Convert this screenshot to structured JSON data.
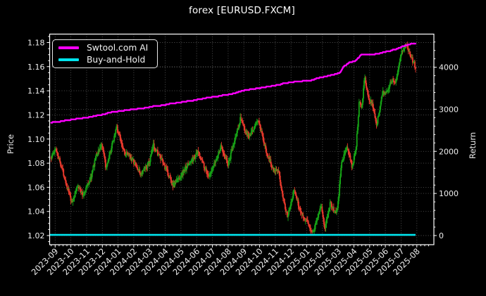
{
  "chart_data": {
    "type": "candlestick+line",
    "title": "forex [EURUSD.FXCM]",
    "grid": "dotted",
    "legend_position": "upper-left",
    "left_axis": {
      "label": "Price",
      "ticks": [
        1.02,
        1.04,
        1.06,
        1.08,
        1.1,
        1.12,
        1.14,
        1.16,
        1.18
      ],
      "lim": [
        1.0125,
        1.1875
      ],
      "minor_step": 0.005
    },
    "right_axis": {
      "label": "Return",
      "ticks": [
        0,
        1000,
        2000,
        3000,
        4000
      ],
      "lim": [
        -225,
        4790
      ],
      "minor_step": 200
    },
    "x_axis": {
      "tick_labels": [
        "2023-09",
        "2023-10",
        "2023-11",
        "2023-12",
        "2024-01",
        "2024-02",
        "2024-03",
        "2024-04",
        "2024-05",
        "2024-06",
        "2024-07",
        "2024-08",
        "2024-09",
        "2024-10",
        "2024-11",
        "2024-12",
        "2025-01",
        "2025-02",
        "2025-03",
        "2025-04",
        "2025-05",
        "2025-06",
        "2025-07",
        "2025-08"
      ],
      "label_rotation_deg": 45
    },
    "legend": [
      {
        "label": "Swtool.com AI",
        "color": "#ff00ff",
        "series": "ai_return"
      },
      {
        "label": "Buy-and-Hold",
        "color": "#00e5ee",
        "series": "buy_and_hold_return"
      }
    ],
    "series": {
      "price_candles_anchors": [
        [
          -0.25,
          1.085
        ],
        [
          0.05,
          1.092
        ],
        [
          0.5,
          1.073
        ],
        [
          1.05,
          1.0465
        ],
        [
          1.45,
          1.062
        ],
        [
          1.75,
          1.053
        ],
        [
          2.3,
          1.069
        ],
        [
          2.55,
          1.084
        ],
        [
          2.95,
          1.096
        ],
        [
          3.25,
          1.075
        ],
        [
          3.9,
          1.11
        ],
        [
          4.45,
          1.088
        ],
        [
          4.8,
          1.085
        ],
        [
          5.45,
          1.0705
        ],
        [
          6.0,
          1.081
        ],
        [
          6.25,
          1.095
        ],
        [
          6.9,
          1.079
        ],
        [
          7.5,
          1.0615
        ],
        [
          8.0,
          1.07
        ],
        [
          8.35,
          1.077
        ],
        [
          8.8,
          1.084
        ],
        [
          9.1,
          1.089
        ],
        [
          9.8,
          1.068
        ],
        [
          10.1,
          1.078
        ],
        [
          10.55,
          1.094
        ],
        [
          11.0,
          1.0785
        ],
        [
          11.8,
          1.118
        ],
        [
          12.1,
          1.105
        ],
        [
          12.35,
          1.102
        ],
        [
          12.9,
          1.116
        ],
        [
          13.3,
          1.095
        ],
        [
          13.75,
          1.078
        ],
        [
          14.2,
          1.072
        ],
        [
          14.75,
          1.036
        ],
        [
          15.2,
          1.058
        ],
        [
          15.6,
          1.04
        ],
        [
          16.05,
          1.03
        ],
        [
          16.4,
          1.022
        ],
        [
          16.9,
          1.046
        ],
        [
          17.15,
          1.025
        ],
        [
          17.5,
          1.048
        ],
        [
          17.75,
          1.039
        ],
        [
          17.95,
          1.041
        ],
        [
          18.2,
          1.079
        ],
        [
          18.55,
          1.094
        ],
        [
          18.9,
          1.076
        ],
        [
          19.15,
          1.096
        ],
        [
          19.35,
          1.133
        ],
        [
          19.5,
          1.127
        ],
        [
          19.68,
          1.153
        ],
        [
          19.9,
          1.133
        ],
        [
          20.15,
          1.131
        ],
        [
          20.45,
          1.111
        ],
        [
          20.8,
          1.138
        ],
        [
          21.1,
          1.14
        ],
        [
          21.45,
          1.15
        ],
        [
          21.65,
          1.147
        ],
        [
          22.0,
          1.172
        ],
        [
          22.35,
          1.178
        ],
        [
          22.6,
          1.169
        ],
        [
          22.92,
          1.16
        ]
      ],
      "ai_return_anchors": [
        [
          -0.25,
          2690
        ],
        [
          1.0,
          2760
        ],
        [
          2.0,
          2810
        ],
        [
          3.0,
          2880
        ],
        [
          3.6,
          2940
        ],
        [
          4.5,
          2985
        ],
        [
          5.5,
          3030
        ],
        [
          6.5,
          3090
        ],
        [
          7.5,
          3150
        ],
        [
          8.5,
          3205
        ],
        [
          9.5,
          3270
        ],
        [
          10.5,
          3330
        ],
        [
          11.3,
          3380
        ],
        [
          11.9,
          3450
        ],
        [
          12.8,
          3500
        ],
        [
          13.8,
          3560
        ],
        [
          14.8,
          3640
        ],
        [
          15.8,
          3680
        ],
        [
          16.3,
          3700
        ],
        [
          16.8,
          3760
        ],
        [
          17.6,
          3820
        ],
        [
          18.1,
          3880
        ],
        [
          18.35,
          4020
        ],
        [
          18.7,
          4120
        ],
        [
          19.1,
          4160
        ],
        [
          19.45,
          4300
        ],
        [
          20.3,
          4310
        ],
        [
          21.0,
          4370
        ],
        [
          21.7,
          4440
        ],
        [
          22.1,
          4500
        ],
        [
          22.5,
          4555
        ],
        [
          22.92,
          4575
        ]
      ],
      "buy_and_hold_return": 15,
      "data_end_month": 22.92
    },
    "colors": {
      "background": "#000000",
      "text": "#eeeeee",
      "spine": "#ffffff",
      "grid": "#555555",
      "candle_up": "#16a316",
      "candle_down": "#e8392c",
      "ai_line": "#ff00ff",
      "buy_hold_line": "#00e5ee"
    }
  }
}
